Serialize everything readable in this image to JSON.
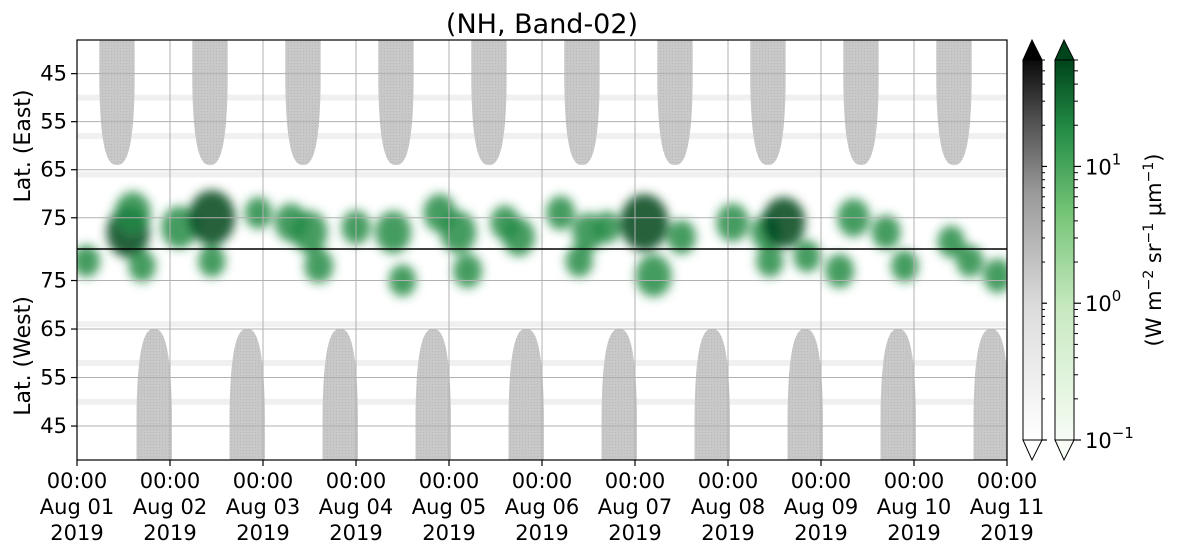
{
  "chart_data": {
    "type": "heatmap",
    "title": "(NH, Band-02)",
    "xlabel": "",
    "x_ticks": [
      {
        "day": 0,
        "label": [
          "00:00",
          "Aug 01",
          "2019"
        ]
      },
      {
        "day": 1,
        "label": [
          "00:00",
          "Aug 02",
          "2019"
        ]
      },
      {
        "day": 2,
        "label": [
          "00:00",
          "Aug 03",
          "2019"
        ]
      },
      {
        "day": 3,
        "label": [
          "00:00",
          "Aug 04",
          "2019"
        ]
      },
      {
        "day": 4,
        "label": [
          "00:00",
          "Aug 05",
          "2019"
        ]
      },
      {
        "day": 5,
        "label": [
          "00:00",
          "Aug 06",
          "2019"
        ]
      },
      {
        "day": 6,
        "label": [
          "00:00",
          "Aug 07",
          "2019"
        ]
      },
      {
        "day": 7,
        "label": [
          "00:00",
          "Aug 08",
          "2019"
        ]
      },
      {
        "day": 8,
        "label": [
          "00:00",
          "Aug 09",
          "2019"
        ]
      },
      {
        "day": 9,
        "label": [
          "00:00",
          "Aug 10",
          "2019"
        ]
      },
      {
        "day": 10,
        "label": [
          "00:00",
          "Aug 11",
          "2019"
        ]
      }
    ],
    "xlim_days": [
      0,
      10
    ],
    "panels": {
      "east": {
        "ylabel": "Lat. (East)",
        "ticks": [
          45,
          55,
          65,
          75
        ],
        "ylim": [
          38,
          81.5
        ],
        "night_polar_gap": [
          {
            "center": 0.43,
            "half_width": 0.19,
            "max_lat": 64
          },
          {
            "center": 1.43,
            "half_width": 0.19,
            "max_lat": 64
          },
          {
            "center": 2.43,
            "half_width": 0.19,
            "max_lat": 64
          },
          {
            "center": 3.43,
            "half_width": 0.19,
            "max_lat": 64
          },
          {
            "center": 4.43,
            "half_width": 0.19,
            "max_lat": 64
          },
          {
            "center": 5.43,
            "half_width": 0.19,
            "max_lat": 64
          },
          {
            "center": 6.43,
            "half_width": 0.19,
            "max_lat": 64
          },
          {
            "center": 7.43,
            "half_width": 0.19,
            "max_lat": 64
          },
          {
            "center": 8.43,
            "half_width": 0.19,
            "max_lat": 64
          },
          {
            "center": 9.43,
            "half_width": 0.19,
            "max_lat": 64
          }
        ]
      },
      "west": {
        "ylabel": "Lat. (West)",
        "ticks": [
          75,
          65,
          55,
          45
        ],
        "ylim": [
          38,
          81.5
        ],
        "night_polar_gap": [
          {
            "center": 0.83,
            "half_width": 0.19,
            "max_lat": 65
          },
          {
            "center": 1.83,
            "half_width": 0.19,
            "max_lat": 65
          },
          {
            "center": 2.83,
            "half_width": 0.19,
            "max_lat": 65
          },
          {
            "center": 3.83,
            "half_width": 0.19,
            "max_lat": 65
          },
          {
            "center": 4.83,
            "half_width": 0.19,
            "max_lat": 65
          },
          {
            "center": 5.83,
            "half_width": 0.19,
            "max_lat": 65
          },
          {
            "center": 6.83,
            "half_width": 0.19,
            "max_lat": 65
          },
          {
            "center": 7.83,
            "half_width": 0.19,
            "max_lat": 65
          },
          {
            "center": 8.83,
            "half_width": 0.19,
            "max_lat": 65
          },
          {
            "center": 9.83,
            "half_width": 0.19,
            "max_lat": 65
          }
        ]
      }
    },
    "emission_patches": [
      {
        "day": 0.55,
        "lat": 78,
        "side": "east",
        "value": 6
      },
      {
        "day": 0.6,
        "lat": 74,
        "side": "east",
        "value": 4
      },
      {
        "day": 0.1,
        "lat": 79,
        "side": "west",
        "value": 1.5
      },
      {
        "day": 0.7,
        "lat": 78,
        "side": "west",
        "value": 1.5
      },
      {
        "day": 1.1,
        "lat": 77,
        "side": "east",
        "value": 4
      },
      {
        "day": 1.45,
        "lat": 75,
        "side": "east",
        "value": 7
      },
      {
        "day": 1.45,
        "lat": 79,
        "side": "west",
        "value": 1.5
      },
      {
        "day": 1.95,
        "lat": 74,
        "side": "east",
        "value": 1.5
      },
      {
        "day": 2.3,
        "lat": 76,
        "side": "east",
        "value": 3
      },
      {
        "day": 2.5,
        "lat": 78,
        "side": "east",
        "value": 4
      },
      {
        "day": 2.6,
        "lat": 78,
        "side": "west",
        "value": 2
      },
      {
        "day": 3.0,
        "lat": 77,
        "side": "east",
        "value": 2
      },
      {
        "day": 3.4,
        "lat": 78,
        "side": "east",
        "value": 4
      },
      {
        "day": 3.5,
        "lat": 75,
        "side": "west",
        "value": 1.5
      },
      {
        "day": 3.9,
        "lat": 74,
        "side": "east",
        "value": 3
      },
      {
        "day": 4.1,
        "lat": 78,
        "side": "east",
        "value": 4
      },
      {
        "day": 4.2,
        "lat": 77,
        "side": "west",
        "value": 2
      },
      {
        "day": 4.6,
        "lat": 76,
        "side": "east",
        "value": 2
      },
      {
        "day": 4.75,
        "lat": 79,
        "side": "east",
        "value": 3
      },
      {
        "day": 5.2,
        "lat": 74,
        "side": "east",
        "value": 2
      },
      {
        "day": 5.5,
        "lat": 78,
        "side": "east",
        "value": 3
      },
      {
        "day": 5.4,
        "lat": 79,
        "side": "west",
        "value": 1.5
      },
      {
        "day": 5.7,
        "lat": 77,
        "side": "east",
        "value": 1.5
      },
      {
        "day": 6.1,
        "lat": 76,
        "side": "east",
        "value": 8
      },
      {
        "day": 6.2,
        "lat": 76,
        "side": "west",
        "value": 4
      },
      {
        "day": 6.5,
        "lat": 79,
        "side": "east",
        "value": 2
      },
      {
        "day": 7.05,
        "lat": 76,
        "side": "east",
        "value": 3
      },
      {
        "day": 7.4,
        "lat": 78,
        "side": "east",
        "value": 2
      },
      {
        "day": 7.6,
        "lat": 76,
        "side": "east",
        "value": 6
      },
      {
        "day": 7.45,
        "lat": 79,
        "side": "west",
        "value": 1.5
      },
      {
        "day": 7.85,
        "lat": 80,
        "side": "west",
        "value": 1.5
      },
      {
        "day": 8.35,
        "lat": 75,
        "side": "east",
        "value": 3
      },
      {
        "day": 8.2,
        "lat": 77,
        "side": "west",
        "value": 2
      },
      {
        "day": 8.7,
        "lat": 78,
        "side": "east",
        "value": 2
      },
      {
        "day": 8.9,
        "lat": 78,
        "side": "west",
        "value": 1.5
      },
      {
        "day": 9.4,
        "lat": 80,
        "side": "east",
        "value": 1.5
      },
      {
        "day": 9.6,
        "lat": 79,
        "side": "west",
        "value": 1.5
      },
      {
        "day": 9.9,
        "lat": 76,
        "side": "west",
        "value": 2
      }
    ],
    "colorbar": {
      "label": "(W m$^{-2}$ sr$^{-1}$ μm$^{-1}$)",
      "scale": "log",
      "range": [
        0.1,
        60
      ],
      "ticks": [
        {
          "value": 0.1,
          "label": "10",
          "exp": "−1"
        },
        {
          "value": 1,
          "label": "10",
          "exp": "0"
        },
        {
          "value": 10,
          "label": "10",
          "exp": "1"
        }
      ],
      "gray_ramp": [
        "#ffffff",
        "#d9d9d9",
        "#999999",
        "#4d4d4d",
        "#000000"
      ],
      "green_ramp": [
        "#f7fcf5",
        "#c7e9c0",
        "#74c476",
        "#238b45",
        "#00441b"
      ],
      "extend": "both"
    },
    "colors": {
      "gap": "#c8c8c8",
      "grid": "#b0b0b0",
      "axis": "#000000"
    }
  },
  "labels": {
    "title": "(NH, Band-02)",
    "ylabel_east": "Lat. (East)",
    "ylabel_west": "Lat. (West)",
    "cbar_unit_a": "(W m",
    "cbar_unit_b": " sr",
    "cbar_unit_c": " μm",
    "cbar_unit_d": ")",
    "cbar_exp_a": "−2",
    "cbar_exp_b": "−1",
    "cbar_exp_c": "−1"
  }
}
